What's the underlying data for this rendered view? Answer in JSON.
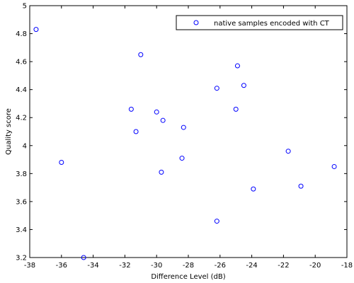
{
  "chart_data": {
    "type": "scatter",
    "title": "",
    "xlabel": "Difference Level (dB)",
    "ylabel": "Quality score",
    "xlim": [
      -38,
      -18
    ],
    "ylim": [
      3.2,
      5
    ],
    "xticks": [
      "-38",
      "-36",
      "-34",
      "-32",
      "-30",
      "-28",
      "-26",
      "-24",
      "-22",
      "-20",
      "-18"
    ],
    "yticks": [
      "3.2",
      "3.4",
      "3.6",
      "3.8",
      "4",
      "4.2",
      "4.4",
      "4.6",
      "4.8",
      "5"
    ],
    "grid": false,
    "legend_position": "top-right",
    "series": [
      {
        "name": "native samples encoded with CT",
        "marker": "circle",
        "color": "#0000ff",
        "x": [
          -37.6,
          -36.0,
          -34.6,
          -31.6,
          -31.3,
          -31.0,
          -30.0,
          -29.7,
          -29.6,
          -28.4,
          -28.3,
          -26.2,
          -26.2,
          -25.0,
          -24.9,
          -24.5,
          -23.9,
          -21.7,
          -20.9,
          -18.8
        ],
        "y": [
          4.83,
          3.88,
          3.2,
          4.26,
          4.1,
          4.65,
          4.24,
          3.81,
          4.18,
          3.91,
          4.13,
          4.41,
          3.46,
          4.26,
          4.57,
          4.43,
          3.69,
          3.96,
          3.71,
          3.85
        ]
      }
    ]
  }
}
